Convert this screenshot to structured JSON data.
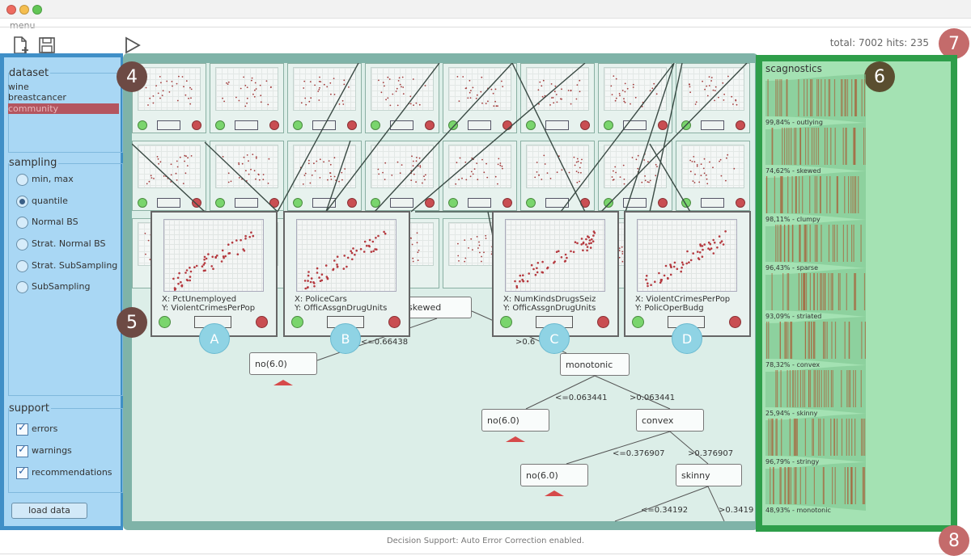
{
  "app": {
    "menu_label": "menu",
    "total_text": "total: 7002 hits: 235",
    "footer_status": "Decision Support: Auto Error Correction enabled."
  },
  "badges": [
    "4",
    "5",
    "6",
    "7",
    "8"
  ],
  "toolbar": {
    "icons": [
      "new-file-icon",
      "save-icon",
      "play-icon"
    ]
  },
  "left_panel": {
    "dataset": {
      "title": "dataset",
      "items": [
        "wine",
        "breastcancer",
        "community"
      ],
      "selected": "community"
    },
    "sampling": {
      "title": "sampling",
      "options": [
        "min, max",
        "quantile",
        "Normal BS",
        "Strat. Normal BS",
        "Strat. SubSampling",
        "SubSampling"
      ],
      "selected": "quantile"
    },
    "support": {
      "title": "support",
      "options": [
        "errors",
        "warnings",
        "recommendations"
      ]
    },
    "load_button": "load data"
  },
  "popups": [
    {
      "letter": "A",
      "x": "X: PctUnemployed",
      "y": "Y: ViolentCrimesPerPop"
    },
    {
      "letter": "B",
      "x": "X: PoliceCars",
      "y": "Y: OfficAssgnDrugUnits"
    },
    {
      "letter": "C",
      "x": "X: NumKindsDrugsSeiz",
      "y": "Y: OfficAssgnDrugUnits"
    },
    {
      "letter": "D",
      "x": "X: ViolentCrimesPerPop",
      "y": "Y: PolicOperBudg"
    }
  ],
  "tree": {
    "nodes": {
      "skewed": "skewed",
      "no1": "no(6.0)",
      "monotonic": "monotonic",
      "no2": "no(6.0)",
      "convex": "convex",
      "no3": "no(6.0)",
      "skinny": "skinny"
    },
    "edges": {
      "e1": "<=0.66438",
      "e2": ">0.6",
      "e3": "<=0.063441",
      "e4": ">0.063441",
      "e5": "<=0.376907",
      "e6": ">0.376907",
      "e7": "<=0.34192",
      "e8": ">0.3419"
    }
  },
  "scagnostics": {
    "title": "scagnostics",
    "rows": [
      "99,84% - outlying",
      "74,62% - skewed",
      "98,11% - clumpy",
      "96,43% - sparse",
      "93,09% - striated",
      "78,32% - convex",
      "25,94% - skinny",
      "96,79% - stringy",
      "48,93% - monotonic"
    ]
  }
}
